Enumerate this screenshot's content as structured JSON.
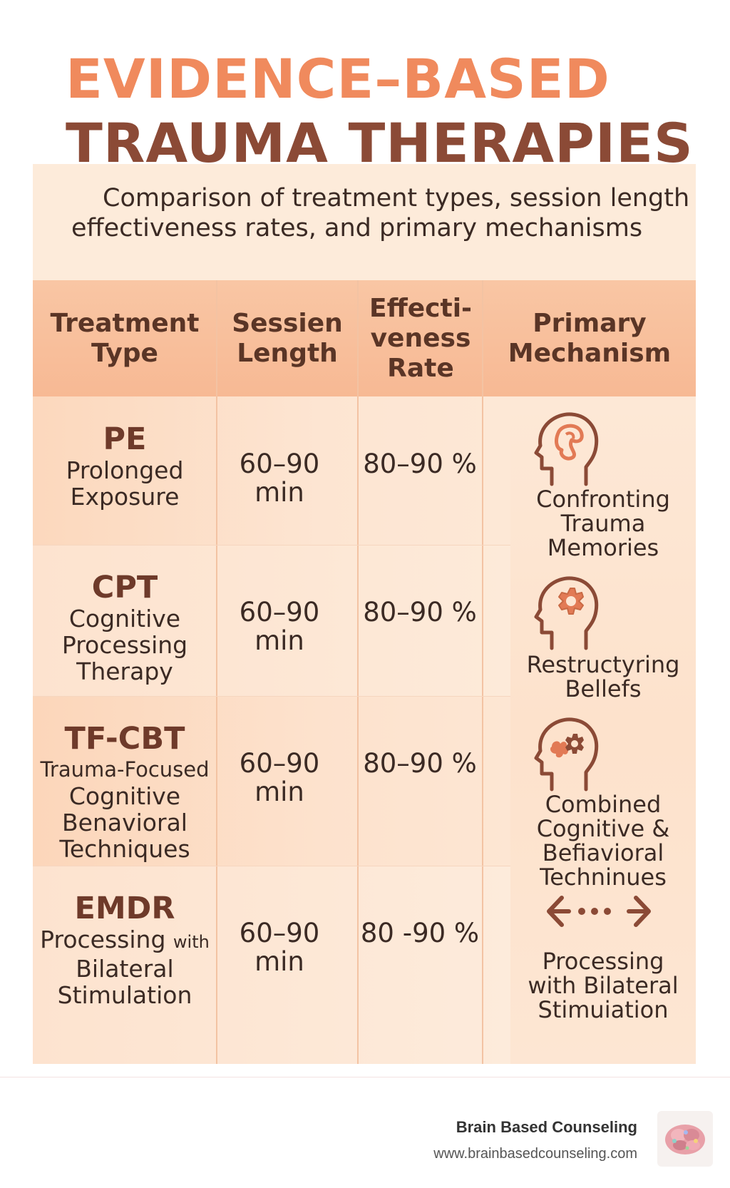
{
  "title": {
    "line1": "EVIDENCE–BASED",
    "line2": "TRAUMA THERAPIES"
  },
  "subtitle": {
    "line1": "Comparison of treatment types, session length",
    "line2": "effectiveness rates, and primary mechanisms"
  },
  "headers": {
    "treatment": [
      "Treatment",
      "Type"
    ],
    "session": [
      "Sessien",
      "Length"
    ],
    "effectiveness": [
      "Effecti-",
      "veness",
      "Rate"
    ],
    "mechanism": [
      "Primary",
      "Mechanism"
    ]
  },
  "rows": [
    {
      "abbr": "PE",
      "full": [
        "Prolonged",
        "Exposure"
      ],
      "session": [
        "60–90",
        "min"
      ],
      "rate": "80–90 %"
    },
    {
      "abbr": "CPT",
      "full": [
        "Cognitive",
        "Processing",
        "Therapy"
      ],
      "session": [
        "60–90",
        "min"
      ],
      "rate": "80–90 %"
    },
    {
      "abbr": "TF-CBT",
      "full": [
        "Trauma-Focused",
        "Cognitive",
        "Benavioral",
        "Techniques"
      ],
      "session": [
        "60–90",
        "min"
      ],
      "rate": "80–90 %"
    },
    {
      "abbr": "EMDR",
      "full_line1": "Processing",
      "full_line1_small": "with",
      "full": [
        "Bilateral",
        "Stimulation"
      ],
      "session": [
        "60–90",
        "min"
      ],
      "rate": "80 -90 %"
    }
  ],
  "mechanisms": [
    {
      "icon": "head-brain-icon",
      "label": [
        "Confronting",
        "Trauma",
        "Memories"
      ]
    },
    {
      "icon": "head-gear-icon",
      "label": [
        "Restructyring",
        "Bellefs"
      ]
    },
    {
      "icon": "head-puzzle-gear-icon",
      "label": [
        "Combined",
        "Cognitive &",
        "Befiavioral",
        "Techninues"
      ]
    },
    {
      "icon": "bilateral-arrows-icon",
      "label": [
        "Processing",
        "with Bilateral",
        "Stimuiation"
      ]
    }
  ],
  "footer": {
    "brand": "Brain Based Counseling",
    "url": "www.brainbasedcounseling.com",
    "logo_icon": "brain-logo-icon"
  },
  "colors": {
    "title_orange": "#f08a5d",
    "title_brown": "#8b4a36",
    "header_bg": "#f9c6a4",
    "cell_bg": "#fde9d8",
    "icon_brown": "#8b4a36",
    "icon_orange": "#e27a55"
  }
}
